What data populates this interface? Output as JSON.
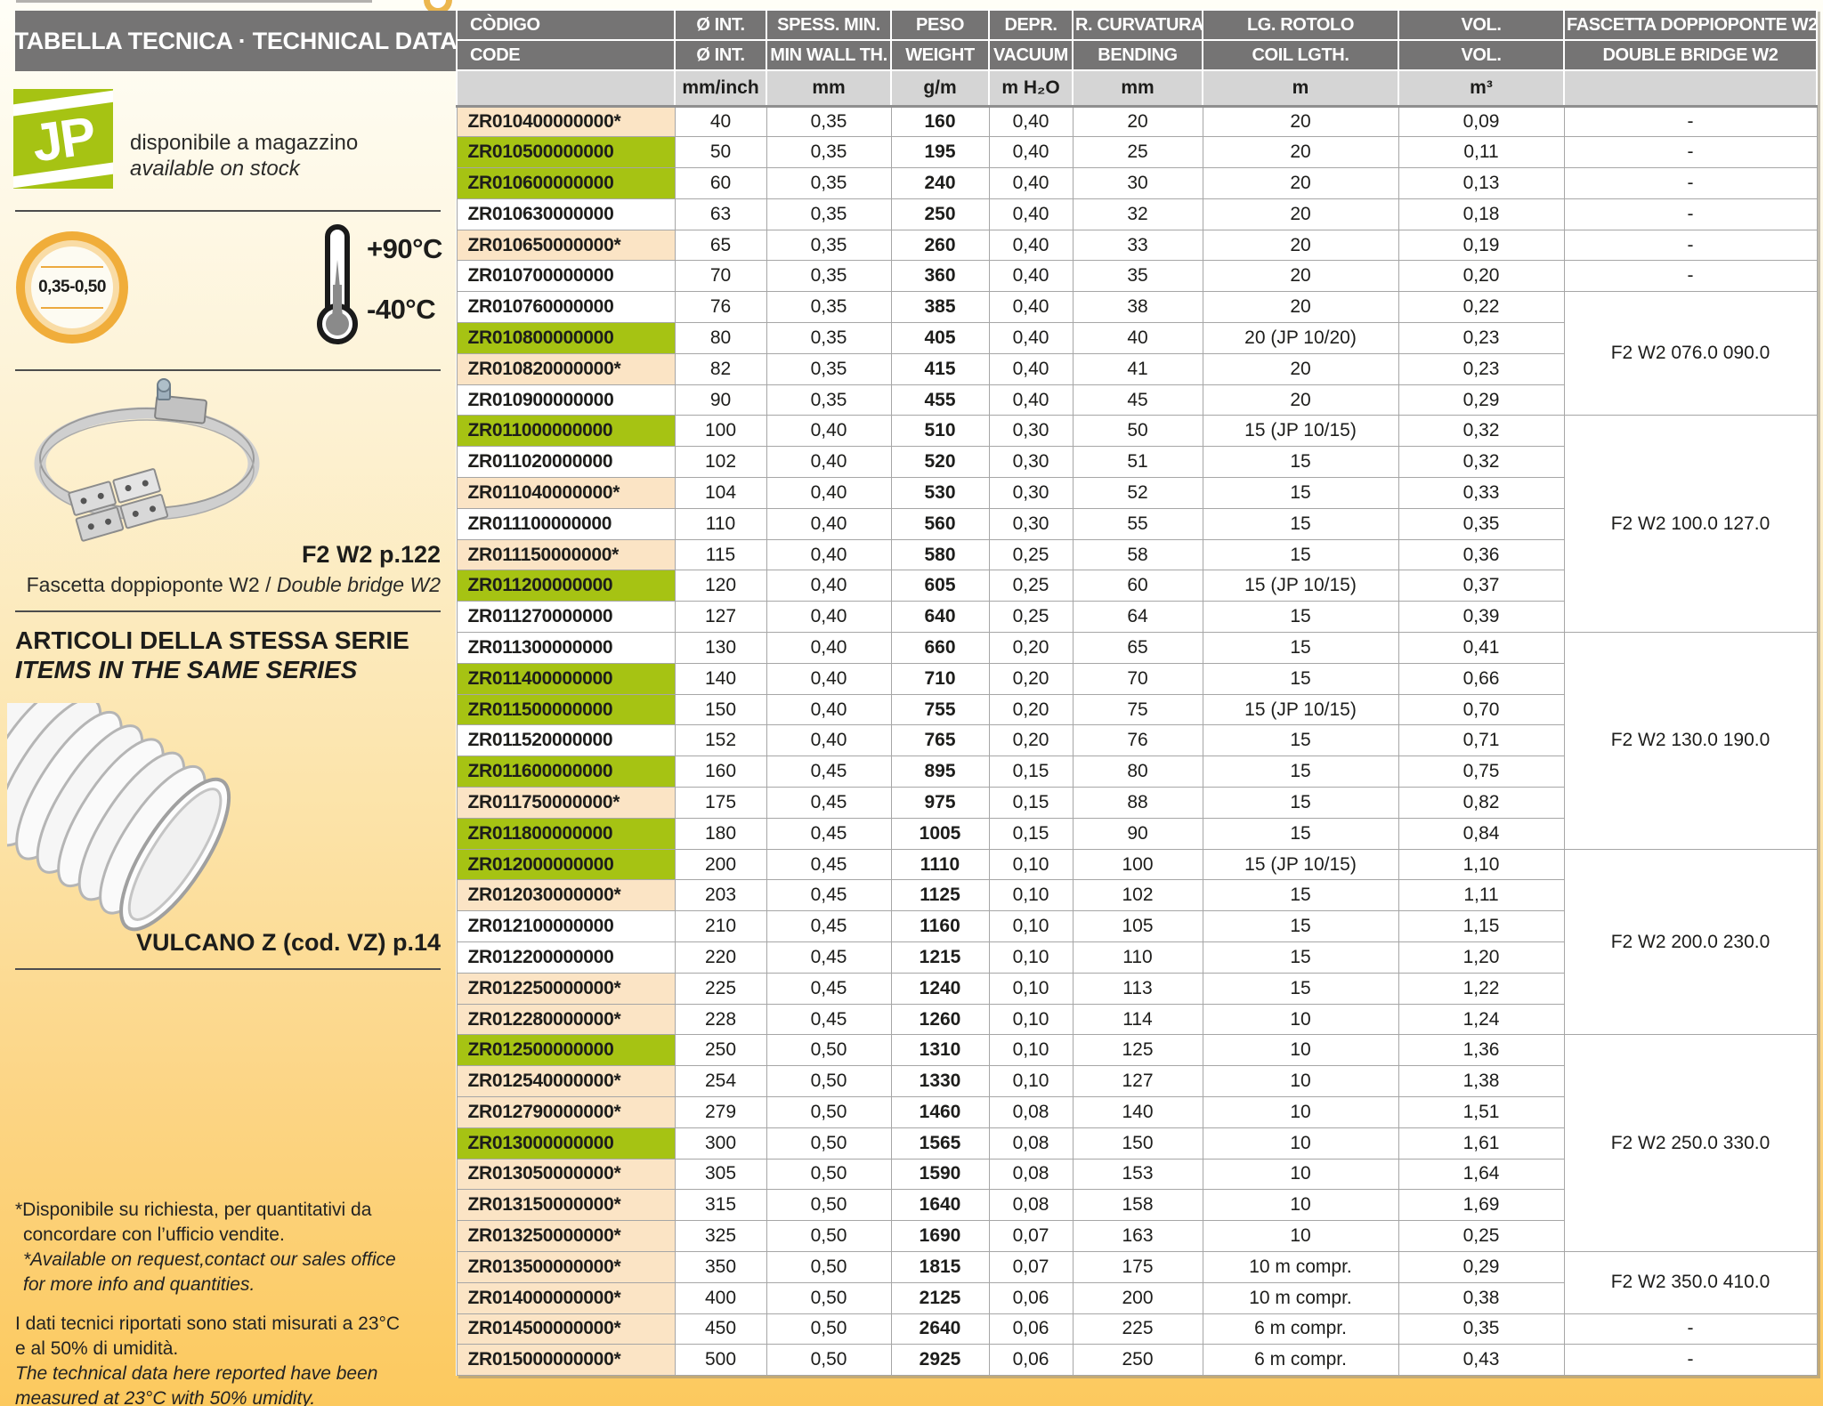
{
  "colors": {
    "accent_green": "#a6c313",
    "highlight_peach": "#fbe4c5",
    "header_gray": "#757474",
    "unit_gray": "#d5d5d5",
    "border_gray": "#a6a6a6",
    "page_yellow_bottom": "#fcc95e",
    "circle_gold": "#f0ad3a",
    "text_dark": "#1d1d1b"
  },
  "sidebar": {
    "title": "TABELLA TECNICA · TECHNICAL DATA",
    "logo_text": "JP",
    "stock_note_it": "disponibile a magazzino",
    "stock_note_en": "available on stock",
    "wall_thickness_range": "0,35-0,50",
    "temp_max": "+90°C",
    "temp_min": "-40°C",
    "clamp_ref": "F2 W2 p.122",
    "clamp_caption_it": "Fascetta doppioponte W2",
    "clamp_caption_sep": " / ",
    "clamp_caption_en": "Double bridge W2",
    "series_title_it": "ARTICOLI DELLA STESSA SERIE",
    "series_title_en": "ITEMS IN THE SAME SERIES",
    "hose_ref": "VULCANO Z (cod. VZ) p.14",
    "footnotes": [
      {
        "style": "regular",
        "lines": [
          "*Disponibile su richiesta, per quantitativi da",
          "concordare con l’ufficio vendite."
        ]
      },
      {
        "style": "italic",
        "lines": [
          "*Available on request,contact our sales office",
          "for more info and quantities."
        ]
      },
      {
        "style": "regular",
        "lines": [
          "I dati tecnici riportati sono stati misurati a 23°C",
          "e al 50% di umidità."
        ]
      },
      {
        "style": "italic",
        "lines": [
          "The technical data here reported have been",
          "measured at 23°C with 50% umidity."
        ]
      }
    ]
  },
  "table": {
    "header_row_it": [
      "CÒDIGO",
      "Ø INT.",
      "SPESS. MIN.",
      "PESO",
      "DEPR.",
      "R. CURVATURA",
      "LG. ROTOLO",
      "VOL.",
      "FASCETTA DOPPIOPONTE W2"
    ],
    "header_row_en": [
      "CODE",
      "Ø INT.",
      "MIN WALL TH.",
      "WEIGHT",
      "VACUUM",
      "BENDING",
      "COIL LGTH.",
      "VOL.",
      "DOUBLE BRIDGE W2"
    ],
    "units_row": [
      "",
      "mm/inch",
      "mm",
      "g/m",
      "m H₂O",
      "mm",
      "m",
      "m³",
      ""
    ],
    "rows": [
      {
        "code": "ZR010400000000*",
        "highlight": "peach",
        "diameter": "40",
        "wall": "0,35",
        "weight": "160",
        "vacuum": "0,40",
        "bending": "20",
        "coil": "20",
        "volume": "0,09"
      },
      {
        "code": "ZR010500000000",
        "highlight": "green",
        "diameter": "50",
        "wall": "0,35",
        "weight": "195",
        "vacuum": "0,40",
        "bending": "25",
        "coil": "20",
        "volume": "0,11"
      },
      {
        "code": "ZR010600000000",
        "highlight": "green",
        "diameter": "60",
        "wall": "0,35",
        "weight": "240",
        "vacuum": "0,40",
        "bending": "30",
        "coil": "20",
        "volume": "0,13"
      },
      {
        "code": "ZR010630000000",
        "highlight": "none",
        "diameter": "63",
        "wall": "0,35",
        "weight": "250",
        "vacuum": "0,40",
        "bending": "32",
        "coil": "20",
        "volume": "0,18"
      },
      {
        "code": "ZR010650000000*",
        "highlight": "peach",
        "diameter": "65",
        "wall": "0,35",
        "weight": "260",
        "vacuum": "0,40",
        "bending": "33",
        "coil": "20",
        "volume": "0,19"
      },
      {
        "code": "ZR010700000000",
        "highlight": "none",
        "diameter": "70",
        "wall": "0,35",
        "weight": "360",
        "vacuum": "0,40",
        "bending": "35",
        "coil": "20",
        "volume": "0,20"
      },
      {
        "code": "ZR010760000000",
        "highlight": "none",
        "diameter": "76",
        "wall": "0,35",
        "weight": "385",
        "vacuum": "0,40",
        "bending": "38",
        "coil": "20",
        "volume": "0,22"
      },
      {
        "code": "ZR010800000000",
        "highlight": "green",
        "diameter": "80",
        "wall": "0,35",
        "weight": "405",
        "vacuum": "0,40",
        "bending": "40",
        "coil": "20 (JP 10/20)",
        "volume": "0,23"
      },
      {
        "code": "ZR010820000000*",
        "highlight": "peach",
        "diameter": "82",
        "wall": "0,35",
        "weight": "415",
        "vacuum": "0,40",
        "bending": "41",
        "coil": "20",
        "volume": "0,23"
      },
      {
        "code": "ZR010900000000",
        "highlight": "none",
        "diameter": "90",
        "wall": "0,35",
        "weight": "455",
        "vacuum": "0,40",
        "bending": "45",
        "coil": "20",
        "volume": "0,29"
      },
      {
        "code": "ZR011000000000",
        "highlight": "green",
        "diameter": "100",
        "wall": "0,40",
        "weight": "510",
        "vacuum": "0,30",
        "bending": "50",
        "coil": "15 (JP 10/15)",
        "volume": "0,32"
      },
      {
        "code": "ZR011020000000",
        "highlight": "none",
        "diameter": "102",
        "wall": "0,40",
        "weight": "520",
        "vacuum": "0,30",
        "bending": "51",
        "coil": "15",
        "volume": "0,32"
      },
      {
        "code": "ZR011040000000*",
        "highlight": "peach",
        "diameter": "104",
        "wall": "0,40",
        "weight": "530",
        "vacuum": "0,30",
        "bending": "52",
        "coil": "15",
        "volume": "0,33"
      },
      {
        "code": "ZR011100000000",
        "highlight": "none",
        "diameter": "110",
        "wall": "0,40",
        "weight": "560",
        "vacuum": "0,30",
        "bending": "55",
        "coil": "15",
        "volume": "0,35"
      },
      {
        "code": "ZR011150000000*",
        "highlight": "peach",
        "diameter": "115",
        "wall": "0,40",
        "weight": "580",
        "vacuum": "0,25",
        "bending": "58",
        "coil": "15",
        "volume": "0,36"
      },
      {
        "code": "ZR011200000000",
        "highlight": "green",
        "diameter": "120",
        "wall": "0,40",
        "weight": "605",
        "vacuum": "0,25",
        "bending": "60",
        "coil": "15 (JP 10/15)",
        "volume": "0,37"
      },
      {
        "code": "ZR011270000000",
        "highlight": "none",
        "diameter": "127",
        "wall": "0,40",
        "weight": "640",
        "vacuum": "0,25",
        "bending": "64",
        "coil": "15",
        "volume": "0,39"
      },
      {
        "code": "ZR011300000000",
        "highlight": "none",
        "diameter": "130",
        "wall": "0,40",
        "weight": "660",
        "vacuum": "0,20",
        "bending": "65",
        "coil": "15",
        "volume": "0,41"
      },
      {
        "code": "ZR011400000000",
        "highlight": "green",
        "diameter": "140",
        "wall": "0,40",
        "weight": "710",
        "vacuum": "0,20",
        "bending": "70",
        "coil": "15",
        "volume": "0,66"
      },
      {
        "code": "ZR011500000000",
        "highlight": "green",
        "diameter": "150",
        "wall": "0,40",
        "weight": "755",
        "vacuum": "0,20",
        "bending": "75",
        "coil": "15 (JP 10/15)",
        "volume": "0,70"
      },
      {
        "code": "ZR011520000000",
        "highlight": "none",
        "diameter": "152",
        "wall": "0,40",
        "weight": "765",
        "vacuum": "0,20",
        "bending": "76",
        "coil": "15",
        "volume": "0,71"
      },
      {
        "code": "ZR011600000000",
        "highlight": "green",
        "diameter": "160",
        "wall": "0,45",
        "weight": "895",
        "vacuum": "0,15",
        "bending": "80",
        "coil": "15",
        "volume": "0,75"
      },
      {
        "code": "ZR011750000000*",
        "highlight": "peach",
        "diameter": "175",
        "wall": "0,45",
        "weight": "975",
        "vacuum": "0,15",
        "bending": "88",
        "coil": "15",
        "volume": "0,82"
      },
      {
        "code": "ZR011800000000",
        "highlight": "green",
        "diameter": "180",
        "wall": "0,45",
        "weight": "1005",
        "vacuum": "0,15",
        "bending": "90",
        "coil": "15",
        "volume": "0,84"
      },
      {
        "code": "ZR012000000000",
        "highlight": "green",
        "diameter": "200",
        "wall": "0,45",
        "weight": "1110",
        "vacuum": "0,10",
        "bending": "100",
        "coil": "15 (JP 10/15)",
        "volume": "1,10"
      },
      {
        "code": "ZR012030000000*",
        "highlight": "peach",
        "diameter": "203",
        "wall": "0,45",
        "weight": "1125",
        "vacuum": "0,10",
        "bending": "102",
        "coil": "15",
        "volume": "1,11"
      },
      {
        "code": "ZR012100000000",
        "highlight": "none",
        "diameter": "210",
        "wall": "0,45",
        "weight": "1160",
        "vacuum": "0,10",
        "bending": "105",
        "coil": "15",
        "volume": "1,15"
      },
      {
        "code": "ZR012200000000",
        "highlight": "none",
        "diameter": "220",
        "wall": "0,45",
        "weight": "1215",
        "vacuum": "0,10",
        "bending": "110",
        "coil": "15",
        "volume": "1,20"
      },
      {
        "code": "ZR012250000000*",
        "highlight": "peach",
        "diameter": "225",
        "wall": "0,45",
        "weight": "1240",
        "vacuum": "0,10",
        "bending": "113",
        "coil": "15",
        "volume": "1,22"
      },
      {
        "code": "ZR012280000000*",
        "highlight": "peach",
        "diameter": "228",
        "wall": "0,45",
        "weight": "1260",
        "vacuum": "0,10",
        "bending": "114",
        "coil": "10",
        "volume": "1,24"
      },
      {
        "code": "ZR012500000000",
        "highlight": "green",
        "diameter": "250",
        "wall": "0,50",
        "weight": "1310",
        "vacuum": "0,10",
        "bending": "125",
        "coil": "10",
        "volume": "1,36"
      },
      {
        "code": "ZR012540000000*",
        "highlight": "peach",
        "diameter": "254",
        "wall": "0,50",
        "weight": "1330",
        "vacuum": "0,10",
        "bending": "127",
        "coil": "10",
        "volume": "1,38"
      },
      {
        "code": "ZR012790000000*",
        "highlight": "peach",
        "diameter": "279",
        "wall": "0,50",
        "weight": "1460",
        "vacuum": "0,08",
        "bending": "140",
        "coil": "10",
        "volume": "1,51"
      },
      {
        "code": "ZR013000000000",
        "highlight": "green",
        "diameter": "300",
        "wall": "0,50",
        "weight": "1565",
        "vacuum": "0,08",
        "bending": "150",
        "coil": "10",
        "volume": "1,61"
      },
      {
        "code": "ZR013050000000*",
        "highlight": "peach",
        "diameter": "305",
        "wall": "0,50",
        "weight": "1590",
        "vacuum": "0,08",
        "bending": "153",
        "coil": "10",
        "volume": "1,64"
      },
      {
        "code": "ZR013150000000*",
        "highlight": "peach",
        "diameter": "315",
        "wall": "0,50",
        "weight": "1640",
        "vacuum": "0,08",
        "bending": "158",
        "coil": "10",
        "volume": "1,69"
      },
      {
        "code": "ZR013250000000*",
        "highlight": "peach",
        "diameter": "325",
        "wall": "0,50",
        "weight": "1690",
        "vacuum": "0,07",
        "bending": "163",
        "coil": "10",
        "volume": "0,25"
      },
      {
        "code": "ZR013500000000*",
        "highlight": "peach",
        "diameter": "350",
        "wall": "0,50",
        "weight": "1815",
        "vacuum": "0,07",
        "bending": "175",
        "coil": "10 m compr.",
        "volume": "0,29"
      },
      {
        "code": "ZR014000000000*",
        "highlight": "peach",
        "diameter": "400",
        "wall": "0,50",
        "weight": "2125",
        "vacuum": "0,06",
        "bending": "200",
        "coil": "10 m compr.",
        "volume": "0,38"
      },
      {
        "code": "ZR014500000000*",
        "highlight": "peach",
        "diameter": "450",
        "wall": "0,50",
        "weight": "2640",
        "vacuum": "0,06",
        "bending": "225",
        "coil": "6 m compr.",
        "volume": "0,35"
      },
      {
        "code": "ZR015000000000*",
        "highlight": "peach",
        "diameter": "500",
        "wall": "0,50",
        "weight": "2925",
        "vacuum": "0,06",
        "bending": "250",
        "coil": "6 m compr.",
        "volume": "0,43"
      }
    ],
    "fascetta_cells": [
      {
        "span": 1,
        "label": "-"
      },
      {
        "span": 1,
        "label": "-"
      },
      {
        "span": 1,
        "label": "-"
      },
      {
        "span": 1,
        "label": "-"
      },
      {
        "span": 1,
        "label": "-"
      },
      {
        "span": 1,
        "label": "-"
      },
      {
        "span": 4,
        "label": "F2 W2 076.0 090.0"
      },
      {
        "span": 7,
        "label": "F2 W2 100.0 127.0"
      },
      {
        "span": 7,
        "label": "F2 W2 130.0 190.0"
      },
      {
        "span": 6,
        "label": "F2 W2 200.0 230.0"
      },
      {
        "span": 7,
        "label": "F2 W2 250.0 330.0"
      },
      {
        "span": 2,
        "label": "F2 W2 350.0 410.0"
      },
      {
        "span": 1,
        "label": "-"
      },
      {
        "span": 1,
        "label": "-"
      }
    ]
  }
}
